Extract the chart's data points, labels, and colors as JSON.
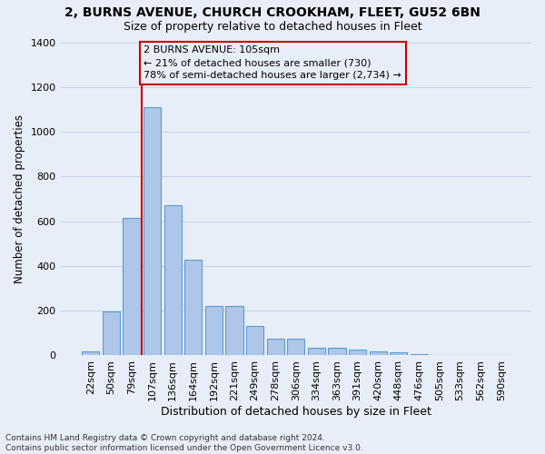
{
  "title1": "2, BURNS AVENUE, CHURCH CROOKHAM, FLEET, GU52 6BN",
  "title2": "Size of property relative to detached houses in Fleet",
  "xlabel": "Distribution of detached houses by size in Fleet",
  "ylabel": "Number of detached properties",
  "footnote": "Contains HM Land Registry data © Crown copyright and database right 2024.\nContains public sector information licensed under the Open Government Licence v3.0.",
  "categories": [
    "22sqm",
    "50sqm",
    "79sqm",
    "107sqm",
    "136sqm",
    "164sqm",
    "192sqm",
    "221sqm",
    "249sqm",
    "278sqm",
    "306sqm",
    "334sqm",
    "363sqm",
    "391sqm",
    "420sqm",
    "448sqm",
    "476sqm",
    "505sqm",
    "533sqm",
    "562sqm",
    "590sqm"
  ],
  "values": [
    20,
    195,
    615,
    1110,
    670,
    430,
    220,
    220,
    130,
    75,
    75,
    33,
    33,
    28,
    18,
    15,
    5,
    3,
    2,
    1,
    1
  ],
  "bar_color": "#aec6e8",
  "bar_edge_color": "#5b9bd5",
  "vline_x_index": 3,
  "vline_color": "#cc0000",
  "annotation_text": "2 BURNS AVENUE: 105sqm\n← 21% of detached houses are smaller (730)\n78% of semi-detached houses are larger (2,734) →",
  "annotation_box_color": "#cc0000",
  "ylim": [
    0,
    1400
  ],
  "yticks": [
    0,
    200,
    400,
    600,
    800,
    1000,
    1200,
    1400
  ],
  "background_color": "#e8eef7",
  "grid_color": "#c8d4e8",
  "title1_fontsize": 10,
  "title2_fontsize": 9,
  "xlabel_fontsize": 9,
  "ylabel_fontsize": 8.5,
  "tick_fontsize": 8,
  "annotation_fontsize": 8,
  "footnote_fontsize": 6.5
}
